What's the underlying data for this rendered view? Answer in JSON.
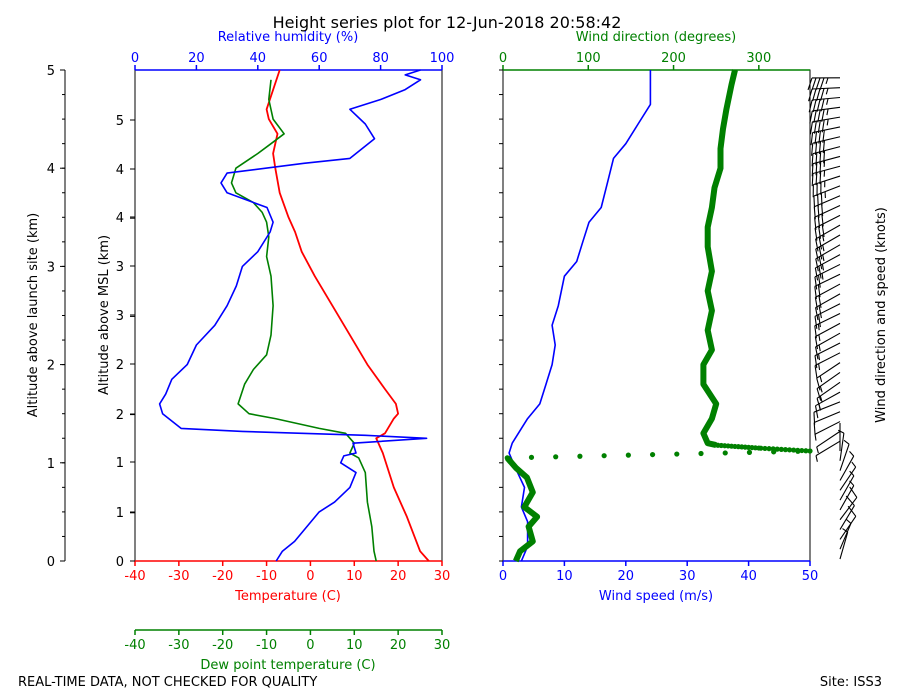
{
  "title": "Height series plot for 12-Jun-2018 20:58:42",
  "footer_left": "REAL-TIME DATA, NOT CHECKED FOR QUALITY",
  "footer_right": "Site: ISS3",
  "colors": {
    "temperature": "#ff0000",
    "dewpoint": "#008000",
    "rh": "#0000ff",
    "wind_speed": "#0000ff",
    "wind_dir": "#008000",
    "barbs": "#000000"
  },
  "chart_data": [
    {
      "type": "line",
      "name": "thermo-panel",
      "ylabel_left": "Altitude above launch site (km)",
      "ylabel_right": "Altitude above MSL (km)",
      "ylim_km": [
        0,
        5
      ],
      "left_ticks": [
        "0",
        "1",
        "2",
        "3",
        "4",
        "5"
      ],
      "right_ticks": [
        "0",
        "1",
        "2",
        "3",
        "4",
        "5"
      ],
      "axes": {
        "temperature": {
          "label": "Temperature (C)",
          "range": [
            -40,
            30
          ],
          "ticks": [
            "-40",
            "-30",
            "-20",
            "-10",
            "0",
            "10",
            "20",
            "30"
          ]
        },
        "dewpoint": {
          "label": "Dew point temperature (C)",
          "range": [
            -40,
            30
          ],
          "ticks": [
            "-40",
            "-30",
            "-20",
            "-10",
            "0",
            "10",
            "20",
            "30"
          ]
        },
        "rh": {
          "label": "Relative humidity (%)",
          "range": [
            0,
            100
          ],
          "ticks": [
            "0",
            "20",
            "40",
            "60",
            "80",
            "100"
          ]
        }
      },
      "series": [
        {
          "name": "Temperature",
          "units": "C",
          "points": [
            [
              27,
              0
            ],
            [
              25,
              0.1
            ],
            [
              22,
              0.45
            ],
            [
              19,
              0.75
            ],
            [
              16.5,
              1.1
            ],
            [
              15,
              1.25
            ],
            [
              17,
              1.3
            ],
            [
              19,
              1.45
            ],
            [
              20,
              1.5
            ],
            [
              19.5,
              1.6
            ],
            [
              17,
              1.75
            ],
            [
              13,
              2.0
            ],
            [
              9,
              2.3
            ],
            [
              5,
              2.6
            ],
            [
              1,
              2.9
            ],
            [
              -2,
              3.15
            ],
            [
              -3.5,
              3.35
            ],
            [
              -5,
              3.5
            ],
            [
              -7,
              3.75
            ],
            [
              -8,
              4.0
            ],
            [
              -8.5,
              4.15
            ],
            [
              -7.5,
              4.35
            ],
            [
              -9.5,
              4.5
            ],
            [
              -10,
              4.6
            ],
            [
              -7,
              5.0
            ]
          ]
        },
        {
          "name": "Dew point",
          "units": "C",
          "points": [
            [
              15,
              0
            ],
            [
              14.5,
              0.1
            ],
            [
              14,
              0.35
            ],
            [
              13,
              0.6
            ],
            [
              12.5,
              0.9
            ],
            [
              11,
              1.05
            ],
            [
              9,
              1.1
            ],
            [
              10,
              1.2
            ],
            [
              8,
              1.3
            ],
            [
              2,
              1.35
            ],
            [
              -8,
              1.45
            ],
            [
              -14,
              1.5
            ],
            [
              -16.5,
              1.6
            ],
            [
              -15,
              1.8
            ],
            [
              -13,
              1.95
            ],
            [
              -10,
              2.1
            ],
            [
              -9,
              2.3
            ],
            [
              -8.5,
              2.6
            ],
            [
              -9,
              2.9
            ],
            [
              -10,
              3.1
            ],
            [
              -9.5,
              3.3
            ],
            [
              -10,
              3.45
            ],
            [
              -11,
              3.55
            ],
            [
              -13,
              3.65
            ],
            [
              -17,
              3.75
            ],
            [
              -18,
              3.85
            ],
            [
              -17,
              4.0
            ],
            [
              -12,
              4.15
            ],
            [
              -9,
              4.25
            ],
            [
              -6,
              4.35
            ],
            [
              -8.5,
              4.5
            ],
            [
              -9.5,
              4.7
            ],
            [
              -9,
              4.9
            ]
          ]
        },
        {
          "name": "Relative humidity",
          "units": "%",
          "points": [
            [
              46,
              0
            ],
            [
              48,
              0.1
            ],
            [
              52,
              0.2
            ],
            [
              56,
              0.35
            ],
            [
              60,
              0.5
            ],
            [
              65,
              0.6
            ],
            [
              70,
              0.75
            ],
            [
              72,
              0.9
            ],
            [
              67,
              1.0
            ],
            [
              68,
              1.07
            ],
            [
              72,
              1.1
            ],
            [
              71,
              1.2
            ],
            [
              95,
              1.25
            ],
            [
              75,
              1.28
            ],
            [
              35,
              1.32
            ],
            [
              15,
              1.35
            ],
            [
              9,
              1.5
            ],
            [
              8,
              1.6
            ],
            [
              10,
              1.7
            ],
            [
              12,
              1.85
            ],
            [
              17,
              2.0
            ],
            [
              20,
              2.2
            ],
            [
              26,
              2.4
            ],
            [
              30,
              2.6
            ],
            [
              33,
              2.8
            ],
            [
              35,
              3.0
            ],
            [
              40,
              3.15
            ],
            [
              44,
              3.35
            ],
            [
              45,
              3.45
            ],
            [
              43,
              3.6
            ],
            [
              30,
              3.75
            ],
            [
              28,
              3.85
            ],
            [
              30,
              3.95
            ],
            [
              55,
              4.05
            ],
            [
              70,
              4.1
            ],
            [
              78,
              4.3
            ],
            [
              75,
              4.45
            ],
            [
              70,
              4.6
            ],
            [
              80,
              4.7
            ],
            [
              88,
              4.8
            ],
            [
              93,
              4.9
            ],
            [
              88,
              4.95
            ],
            [
              93,
              5.0
            ]
          ]
        }
      ]
    },
    {
      "type": "line",
      "name": "wind-panel",
      "ylim_km": [
        0,
        5
      ],
      "axes": {
        "wind_speed": {
          "label": "Wind speed (m/s)",
          "range": [
            0,
            50
          ],
          "ticks": [
            "0",
            "10",
            "20",
            "30",
            "40",
            "50"
          ]
        },
        "wind_dir": {
          "label": "Wind direction (degrees)",
          "range": [
            0,
            360
          ],
          "ticks": [
            "0",
            "100",
            "200",
            "300"
          ]
        }
      },
      "barbs_label": "Wind direction and speed (knots)",
      "series": [
        {
          "name": "Wind speed",
          "units": "m/s",
          "points": [
            [
              3,
              0
            ],
            [
              4,
              0.15
            ],
            [
              4,
              0.4
            ],
            [
              3,
              0.55
            ],
            [
              3.5,
              0.75
            ],
            [
              2,
              0.95
            ],
            [
              1,
              1.1
            ],
            [
              1.5,
              1.2
            ],
            [
              3,
              1.35
            ],
            [
              4,
              1.45
            ],
            [
              6,
              1.6
            ],
            [
              7,
              1.8
            ],
            [
              8,
              2.0
            ],
            [
              8.5,
              2.2
            ],
            [
              8,
              2.4
            ],
            [
              9,
              2.6
            ],
            [
              10,
              2.9
            ],
            [
              12,
              3.05
            ],
            [
              13,
              3.25
            ],
            [
              14,
              3.45
            ],
            [
              16,
              3.6
            ],
            [
              17,
              3.85
            ],
            [
              18,
              4.1
            ],
            [
              20,
              4.25
            ],
            [
              22,
              4.45
            ],
            [
              24,
              4.65
            ],
            [
              24,
              5.0
            ]
          ]
        },
        {
          "name": "Wind direction",
          "units": "degrees",
          "points": [
            [
              15,
              0
            ],
            [
              20,
              0.1
            ],
            [
              35,
              0.2
            ],
            [
              30,
              0.35
            ],
            [
              40,
              0.45
            ],
            [
              25,
              0.55
            ],
            [
              35,
              0.7
            ],
            [
              28,
              0.85
            ],
            [
              15,
              0.95
            ],
            [
              5,
              1.05
            ],
            [
              360,
              1.12
            ],
            [
              300,
              1.15
            ],
            [
              250,
              1.18
            ],
            [
              240,
              1.2
            ],
            [
              235,
              1.3
            ],
            [
              245,
              1.45
            ],
            [
              250,
              1.6
            ],
            [
              235,
              1.8
            ],
            [
              235,
              2.0
            ],
            [
              245,
              2.15
            ],
            [
              240,
              2.35
            ],
            [
              245,
              2.55
            ],
            [
              240,
              2.75
            ],
            [
              245,
              2.95
            ],
            [
              240,
              3.2
            ],
            [
              240,
              3.4
            ],
            [
              245,
              3.6
            ],
            [
              248,
              3.8
            ],
            [
              255,
              4.0
            ],
            [
              255,
              4.2
            ],
            [
              258,
              4.4
            ],
            [
              262,
              4.6
            ],
            [
              268,
              4.85
            ],
            [
              272,
              5.0
            ]
          ]
        }
      ]
    }
  ]
}
